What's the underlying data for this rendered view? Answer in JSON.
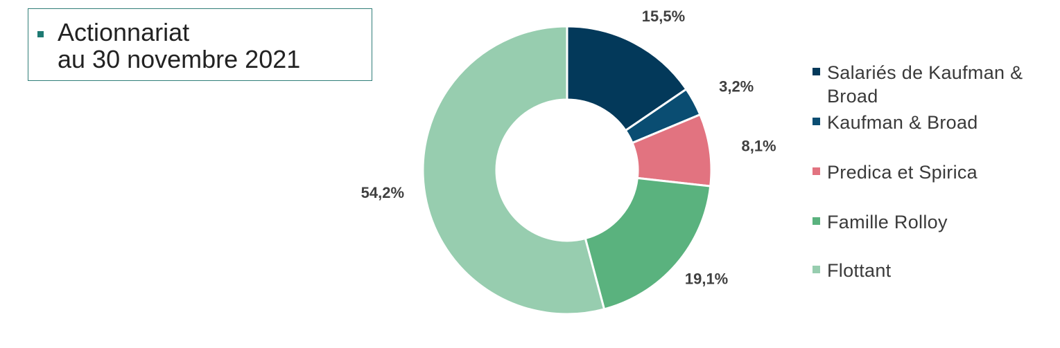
{
  "title": {
    "line1": "Actionnariat",
    "line2": "au 30 novembre 2021",
    "bullet_color": "#1e7a73"
  },
  "chart_data": {
    "type": "pie",
    "subtype": "donut",
    "title": "Actionnariat au 30 novembre 2021",
    "categories": [
      "Salariés de Kaufman & Broad",
      "Kaufman & Broad",
      "Predica et Spirica",
      "Famille Rolloy",
      "Flottant"
    ],
    "values": [
      15.5,
      3.2,
      8.1,
      19.1,
      54.2
    ],
    "labels": [
      "15,5%",
      "3,2%",
      "8,1%",
      "19,1%",
      "54,2%"
    ],
    "colors": [
      "#03395a",
      "#0a4d72",
      "#e27380",
      "#5ab27e",
      "#97cdaf"
    ],
    "legend_position": "right",
    "start_angle": "12 o'clock",
    "direction": "clockwise"
  }
}
